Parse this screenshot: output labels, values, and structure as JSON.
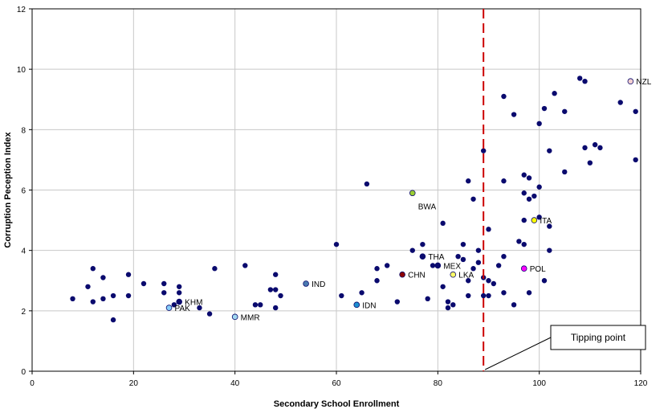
{
  "chart_data": {
    "type": "scatter",
    "title": "",
    "xlabel": "Secondary School Enrollment",
    "ylabel": "Corruption Peception Index",
    "xlim": [
      0,
      120
    ],
    "ylim": [
      0,
      12
    ],
    "xticks": [
      "0",
      "20",
      "40",
      "60",
      "80",
      "100",
      "120"
    ],
    "yticks": [
      "0",
      "2",
      "4",
      "6",
      "8",
      "10",
      "12"
    ],
    "grid": true,
    "default_color": "#0a0a6e",
    "points": [
      [
        8,
        2.4
      ],
      [
        11,
        2.8
      ],
      [
        12,
        3.4
      ],
      [
        12,
        2.3
      ],
      [
        14,
        3.1
      ],
      [
        14,
        2.4
      ],
      [
        16,
        2.5
      ],
      [
        16,
        1.7
      ],
      [
        19,
        3.2
      ],
      [
        19,
        2.5
      ],
      [
        22,
        2.9
      ],
      [
        26,
        2.9
      ],
      [
        26,
        2.6
      ],
      [
        28,
        2.2
      ],
      [
        29,
        2.8
      ],
      [
        29,
        2.6
      ],
      [
        33,
        2.1
      ],
      [
        35,
        1.9
      ],
      [
        36,
        3.4
      ],
      [
        42,
        3.5
      ],
      [
        44,
        2.2
      ],
      [
        45,
        2.2
      ],
      [
        47,
        2.7
      ],
      [
        48,
        2.7
      ],
      [
        48,
        3.2
      ],
      [
        48,
        2.1
      ],
      [
        49,
        2.5
      ],
      [
        60,
        4.2
      ],
      [
        61,
        2.5
      ],
      [
        65,
        2.6
      ],
      [
        66,
        6.2
      ],
      [
        68,
        3.4
      ],
      [
        68,
        3.0
      ],
      [
        70,
        3.5
      ],
      [
        72,
        2.3
      ],
      [
        75,
        4.0
      ],
      [
        77,
        4.2
      ],
      [
        78,
        2.4
      ],
      [
        79,
        3.5
      ],
      [
        80,
        3.5
      ],
      [
        81,
        4.9
      ],
      [
        81,
        2.8
      ],
      [
        82,
        2.3
      ],
      [
        82,
        2.1
      ],
      [
        83,
        2.2
      ],
      [
        84,
        3.8
      ],
      [
        85,
        4.2
      ],
      [
        85,
        3.7
      ],
      [
        86,
        6.3
      ],
      [
        86,
        3.0
      ],
      [
        86,
        2.5
      ],
      [
        87,
        5.7
      ],
      [
        87,
        3.4
      ],
      [
        88,
        4.0
      ],
      [
        88,
        3.6
      ],
      [
        89,
        7.3
      ],
      [
        89,
        3.1
      ],
      [
        89,
        2.5
      ],
      [
        90,
        4.7
      ],
      [
        90,
        3.0
      ],
      [
        90,
        2.5
      ],
      [
        91,
        2.9
      ],
      [
        92,
        3.5
      ],
      [
        93,
        9.1
      ],
      [
        93,
        6.3
      ],
      [
        93,
        3.8
      ],
      [
        93,
        2.6
      ],
      [
        95,
        8.5
      ],
      [
        95,
        2.2
      ],
      [
        96,
        4.3
      ],
      [
        97,
        6.5
      ],
      [
        97,
        5.9
      ],
      [
        97,
        5.0
      ],
      [
        97,
        4.2
      ],
      [
        98,
        6.4
      ],
      [
        98,
        5.7
      ],
      [
        98,
        2.6
      ],
      [
        99,
        5.8
      ],
      [
        100,
        8.2
      ],
      [
        100,
        6.1
      ],
      [
        100,
        5.1
      ],
      [
        101,
        8.7
      ],
      [
        101,
        3.0
      ],
      [
        102,
        7.3
      ],
      [
        102,
        4.8
      ],
      [
        102,
        4.0
      ],
      [
        103,
        9.2
      ],
      [
        105,
        8.6
      ],
      [
        105,
        6.6
      ],
      [
        108,
        9.7
      ],
      [
        109,
        9.6
      ],
      [
        109,
        7.4
      ],
      [
        110,
        6.9
      ],
      [
        111,
        7.5
      ],
      [
        112,
        7.4
      ],
      [
        116,
        8.9
      ],
      [
        119,
        8.6
      ],
      [
        119,
        7.0
      ]
    ],
    "labeled_points": [
      {
        "label": "NZL",
        "x": 118,
        "y": 9.6,
        "color": "#f2d0d0"
      },
      {
        "label": "BWA",
        "x": 75,
        "y": 5.9,
        "color": "#9acd32"
      },
      {
        "label": "ITA",
        "x": 99,
        "y": 5.0,
        "color": "#ffff00"
      },
      {
        "label": "THA",
        "x": 77,
        "y": 3.8,
        "color": "#0a0a6e"
      },
      {
        "label": "MEX",
        "x": 80,
        "y": 3.5,
        "color": "#0a0a6e"
      },
      {
        "label": "LKA",
        "x": 83,
        "y": 3.2,
        "color": "#ffff66"
      },
      {
        "label": "CHN",
        "x": 73,
        "y": 3.2,
        "color": "#8b0000"
      },
      {
        "label": "POL",
        "x": 97,
        "y": 3.4,
        "color": "#ff00ff"
      },
      {
        "label": "IND",
        "x": 54,
        "y": 2.9,
        "color": "#4a7ab0"
      },
      {
        "label": "IDN",
        "x": 64,
        "y": 2.2,
        "color": "#1e8fd0"
      },
      {
        "label": "KHM",
        "x": 29,
        "y": 2.3,
        "color": "#0a0a6e"
      },
      {
        "label": "PAK",
        "x": 27,
        "y": 2.1,
        "color": "#87cefa"
      },
      {
        "label": "MMR",
        "x": 40,
        "y": 1.8,
        "color": "#a0d8f0"
      }
    ],
    "threshold": {
      "x": 89,
      "color": "#cc0000",
      "label": "Tipping point"
    }
  }
}
